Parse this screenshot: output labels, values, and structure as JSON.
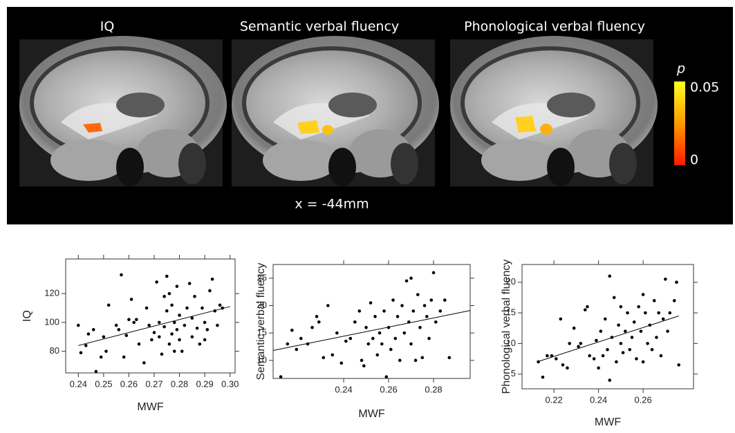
{
  "brain_panel": {
    "titles": [
      "IQ",
      "Semantic verbal fluency",
      "Phonological verbal fluency"
    ],
    "colorbar_label": "p",
    "colorbar_ticks": [
      0.05,
      0
    ],
    "slice_label": "x = -44mm"
  },
  "chart_data": [
    {
      "type": "scatter",
      "xlabel": "MWF",
      "ylabel": "IQ",
      "color": "#000000",
      "x": [
        0.24,
        0.241,
        0.243,
        0.244,
        0.246,
        0.247,
        0.249,
        0.25,
        0.251,
        0.252,
        0.255,
        0.256,
        0.257,
        0.258,
        0.259,
        0.26,
        0.261,
        0.262,
        0.263,
        0.264,
        0.266,
        0.267,
        0.268,
        0.269,
        0.27,
        0.271,
        0.272,
        0.272,
        0.273,
        0.274,
        0.274,
        0.275,
        0.275,
        0.276,
        0.276,
        0.277,
        0.277,
        0.278,
        0.278,
        0.279,
        0.279,
        0.28,
        0.28,
        0.281,
        0.282,
        0.283,
        0.284,
        0.285,
        0.285,
        0.286,
        0.287,
        0.288,
        0.289,
        0.29,
        0.29,
        0.291,
        0.292,
        0.293,
        0.294,
        0.295,
        0.296,
        0.297
      ],
      "values": [
        98,
        79,
        84,
        92,
        95,
        66,
        76,
        90,
        80,
        112,
        98,
        95,
        133,
        76,
        91,
        102,
        116,
        100,
        102,
        85,
        72,
        110,
        98,
        88,
        93,
        128,
        100,
        90,
        78,
        118,
        97,
        132,
        108,
        85,
        120,
        92,
        112,
        80,
        100,
        95,
        125,
        105,
        88,
        80,
        98,
        110,
        127,
        103,
        90,
        118,
        96,
        85,
        110,
        100,
        88,
        95,
        122,
        130,
        108,
        98,
        112,
        110
      ],
      "fit": {
        "x": [
          0.24,
          0.3
        ],
        "y": [
          84,
          111
        ]
      },
      "xlim": [
        0.235,
        0.302
      ],
      "xticks": [
        0.24,
        0.25,
        0.26,
        0.27,
        0.28,
        0.29,
        {
          "value": 0.3,
          "label": "0.30"
        }
      ],
      "ylim": [
        65,
        144
      ],
      "yticks": [
        80,
        100,
        120
      ]
    },
    {
      "type": "scatter",
      "xlabel": "MWF",
      "ylabel": "Semantic verbal fluency",
      "color": "#000000",
      "x": [
        0.212,
        0.215,
        0.217,
        0.219,
        0.221,
        0.224,
        0.226,
        0.228,
        0.229,
        0.231,
        0.233,
        0.235,
        0.237,
        0.239,
        0.241,
        0.243,
        0.245,
        0.247,
        0.248,
        0.249,
        0.25,
        0.251,
        0.252,
        0.253,
        0.254,
        0.255,
        0.256,
        0.257,
        0.258,
        0.259,
        0.26,
        0.261,
        0.262,
        0.263,
        0.264,
        0.265,
        0.266,
        0.267,
        0.268,
        0.269,
        0.27,
        0.27,
        0.271,
        0.272,
        0.273,
        0.274,
        0.275,
        0.276,
        0.277,
        0.278,
        0.279,
        0.28,
        0.281,
        0.283,
        0.285,
        0.287
      ],
      "values": [
        7,
        13,
        15.5,
        12,
        14,
        13,
        16,
        18,
        17,
        10.5,
        20,
        11,
        15,
        9.5,
        13.5,
        14,
        17,
        19,
        10,
        9,
        16,
        13,
        20.5,
        14,
        18,
        11,
        15,
        13,
        19,
        7,
        16,
        12,
        21,
        14,
        18,
        10,
        20,
        15,
        24.5,
        17,
        25,
        13,
        19,
        10,
        22,
        16,
        10.5,
        20,
        18,
        14,
        21,
        26,
        17,
        19,
        21,
        10.5
      ],
      "fit": {
        "x": [
          0.2086,
          0.2963
        ],
        "y": [
          11.8,
          19.1
        ]
      },
      "xlim": [
        0.2086,
        0.2963
      ],
      "xticks": [
        0.24,
        0.26,
        0.28
      ],
      "ylim": [
        6.7,
        27.5
      ],
      "yticks": [
        10,
        15,
        20,
        25
      ]
    },
    {
      "type": "scatter",
      "xlabel": "MWF",
      "ylabel": "Phonological verbal fluency",
      "color": "#000000",
      "x": [
        0.213,
        0.215,
        0.217,
        0.219,
        0.221,
        0.223,
        0.224,
        0.226,
        0.227,
        0.229,
        0.231,
        0.232,
        0.234,
        0.235,
        0.236,
        0.238,
        0.239,
        0.24,
        0.241,
        0.242,
        0.243,
        0.244,
        0.245,
        0.245,
        0.246,
        0.247,
        0.248,
        0.249,
        0.25,
        0.25,
        0.251,
        0.252,
        0.253,
        0.254,
        0.255,
        0.256,
        0.257,
        0.258,
        0.259,
        0.26,
        0.26,
        0.261,
        0.262,
        0.263,
        0.264,
        0.265,
        0.266,
        0.267,
        0.268,
        0.269,
        0.27,
        0.271,
        0.272,
        0.274,
        0.275,
        0.276
      ],
      "values": [
        7,
        4.5,
        8,
        8,
        7.5,
        14,
        6.5,
        6,
        10,
        12.5,
        9.5,
        10,
        15.5,
        16,
        8,
        7.5,
        10.5,
        6,
        12,
        8,
        14,
        9,
        21,
        4,
        11,
        17.5,
        7,
        13,
        16,
        10,
        8.5,
        12,
        15,
        9,
        11,
        13.5,
        7.5,
        16,
        12,
        18,
        7,
        15,
        10,
        13,
        9,
        17,
        11,
        15,
        8,
        14,
        20.5,
        12,
        15,
        17,
        20,
        6.5
      ],
      "fit": {
        "x": [
          0.2125,
          0.276
        ],
        "y": [
          7,
          14.5
        ]
      },
      "xlim": [
        0.2057,
        0.2826
      ],
      "xticks": [
        0.22,
        0.24,
        0.26
      ],
      "ylim": [
        2.6,
        22.9
      ],
      "yticks": [
        5,
        10,
        15,
        20
      ]
    }
  ]
}
